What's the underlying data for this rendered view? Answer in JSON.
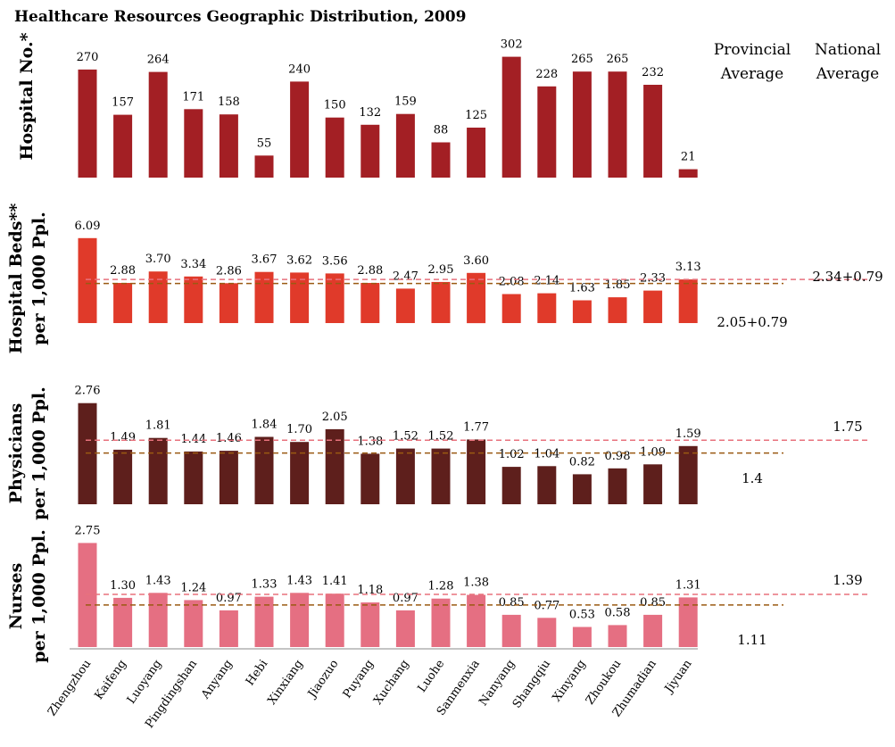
{
  "chart_data": {
    "type": "bar",
    "title": "Healthcare Resources Geographic Distribution, 2009",
    "categories": [
      "Zhengzhou",
      "Kaifeng",
      "Luoyang",
      "Pingdingshan",
      "Anyang",
      "Hebi",
      "Xinxiang",
      "Jiaozuo",
      "Puyang",
      "Xuchang",
      "Luohe",
      "Sanmenxia",
      "Nanyang",
      "Shangqiu",
      "Xinyang",
      "Zhoukou",
      "Zhumadian",
      "Jiyuan"
    ],
    "column_headers": {
      "provincial": "Provincial Average",
      "national": "National Average"
    },
    "panels": [
      {
        "label": "Hospital No.*",
        "label_line1": "Hospital No.*",
        "label_line2": "",
        "color": "#a31f24",
        "values": [
          270,
          157,
          264,
          171,
          158,
          55,
          240,
          150,
          132,
          159,
          88,
          125,
          302,
          228,
          265,
          265,
          232,
          21
        ],
        "value_labels": [
          "270",
          "157",
          "264",
          "171",
          "158",
          "55",
          "240",
          "150",
          "132",
          "159",
          "88",
          "125",
          "302",
          "228",
          "265",
          "265",
          "232",
          "21"
        ],
        "ylim": [
          0,
          310
        ]
      },
      {
        "label": "Hospital Beds** per 1,000 Ppl.",
        "label_line1": "Hospital Beds**",
        "label_line2": "per 1,000 Ppl.",
        "color": "#e03a2a",
        "values": [
          6.09,
          2.88,
          3.7,
          3.34,
          2.86,
          3.67,
          3.62,
          3.56,
          2.88,
          2.47,
          2.95,
          3.6,
          2.08,
          2.14,
          1.63,
          1.85,
          2.33,
          3.13
        ],
        "value_labels": [
          "6.09",
          "2.88",
          "3.70",
          "3.34",
          "2.86",
          "3.67",
          "3.62",
          "3.56",
          "2.88",
          "2.47",
          "2.95",
          "3.60",
          "2.08",
          "2.14",
          "1.63",
          "1.85",
          "2.33",
          "3.13"
        ],
        "ylim": [
          0,
          6.4
        ],
        "provincial_average": 2.84,
        "provincial_average_label": "2.05+0.79",
        "national_average": 3.13,
        "national_average_label": "2.34+0.79"
      },
      {
        "label": "Physicians per 1,000 Ppl.",
        "label_line1": "Physicians",
        "label_line2": "per 1,000 Ppl.",
        "color": "#5e1f1c",
        "values": [
          2.76,
          1.49,
          1.81,
          1.44,
          1.46,
          1.84,
          1.7,
          2.05,
          1.38,
          1.52,
          1.52,
          1.77,
          1.02,
          1.04,
          0.82,
          0.98,
          1.09,
          1.59
        ],
        "value_labels": [
          "2.76",
          "1.49",
          "1.81",
          "1.44",
          "1.46",
          "1.84",
          "1.70",
          "2.05",
          "1.38",
          "1.52",
          "1.52",
          "1.77",
          "1.02",
          "1.04",
          "0.82",
          "0.98",
          "1.09",
          "1.59"
        ],
        "ylim": [
          0,
          2.9
        ],
        "provincial_average": 1.4,
        "provincial_average_label": "1.4",
        "national_average": 1.75,
        "national_average_label": "1.75"
      },
      {
        "label": "Nurses per 1,000 Ppl.",
        "label_line1": "Nurses",
        "label_line2": "per 1,000 Ppl.",
        "color": "#e56f82",
        "values": [
          2.75,
          1.3,
          1.43,
          1.24,
          0.97,
          1.33,
          1.43,
          1.41,
          1.18,
          0.97,
          1.28,
          1.38,
          0.85,
          0.77,
          0.53,
          0.58,
          0.85,
          1.31
        ],
        "value_labels": [
          "2.75",
          "1.30",
          "1.43",
          "1.24",
          "0.97",
          "1.33",
          "1.43",
          "1.41",
          "1.18",
          "0.97",
          "1.28",
          "1.38",
          "0.85",
          "0.77",
          "0.53",
          "0.58",
          "0.85",
          "1.31"
        ],
        "ylim": [
          0,
          2.9
        ],
        "provincial_average": 1.11,
        "provincial_average_label": "1.11",
        "national_average": 1.39,
        "national_average_label": "1.39"
      }
    ],
    "legend": "none",
    "grid": false
  }
}
